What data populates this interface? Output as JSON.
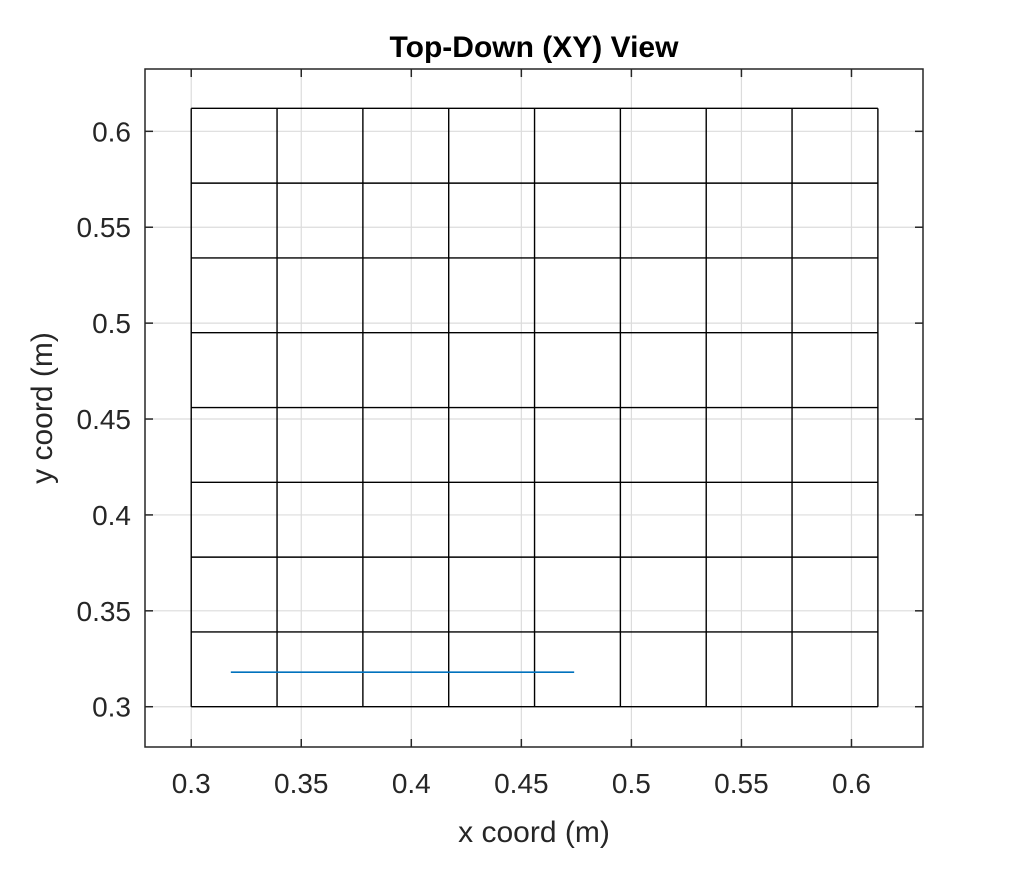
{
  "chart_data": {
    "type": "line",
    "title": "Top-Down (XY) View",
    "xlabel": "x coord (m)",
    "ylabel": "y coord (m)",
    "xlim": [
      0.279,
      0.6325
    ],
    "ylim": [
      0.279,
      0.6325
    ],
    "xticks": [
      0.3,
      0.35,
      0.4,
      0.45,
      0.5,
      0.55,
      0.6
    ],
    "xtick_labels": [
      "0.3",
      "0.35",
      "0.4",
      "0.45",
      "0.5",
      "0.55",
      "0.6"
    ],
    "yticks": [
      0.3,
      0.35,
      0.4,
      0.45,
      0.5,
      0.55,
      0.6
    ],
    "ytick_labels": [
      "0.3",
      "0.35",
      "0.4",
      "0.45",
      "0.5",
      "0.55",
      "0.6"
    ],
    "grid": true,
    "mesh": {
      "x_lines": [
        0.3,
        0.339,
        0.378,
        0.417,
        0.456,
        0.495,
        0.534,
        0.573,
        0.612
      ],
      "y_lines": [
        0.3,
        0.339,
        0.378,
        0.417,
        0.456,
        0.495,
        0.534,
        0.573,
        0.612
      ],
      "color": "#000000"
    },
    "series": [
      {
        "x": [
          0.318,
          0.474
        ],
        "y": [
          0.318,
          0.318
        ],
        "color": "#0072BD"
      }
    ],
    "colors": {
      "grid": "#dcdcdc",
      "axes": "#262626"
    }
  }
}
